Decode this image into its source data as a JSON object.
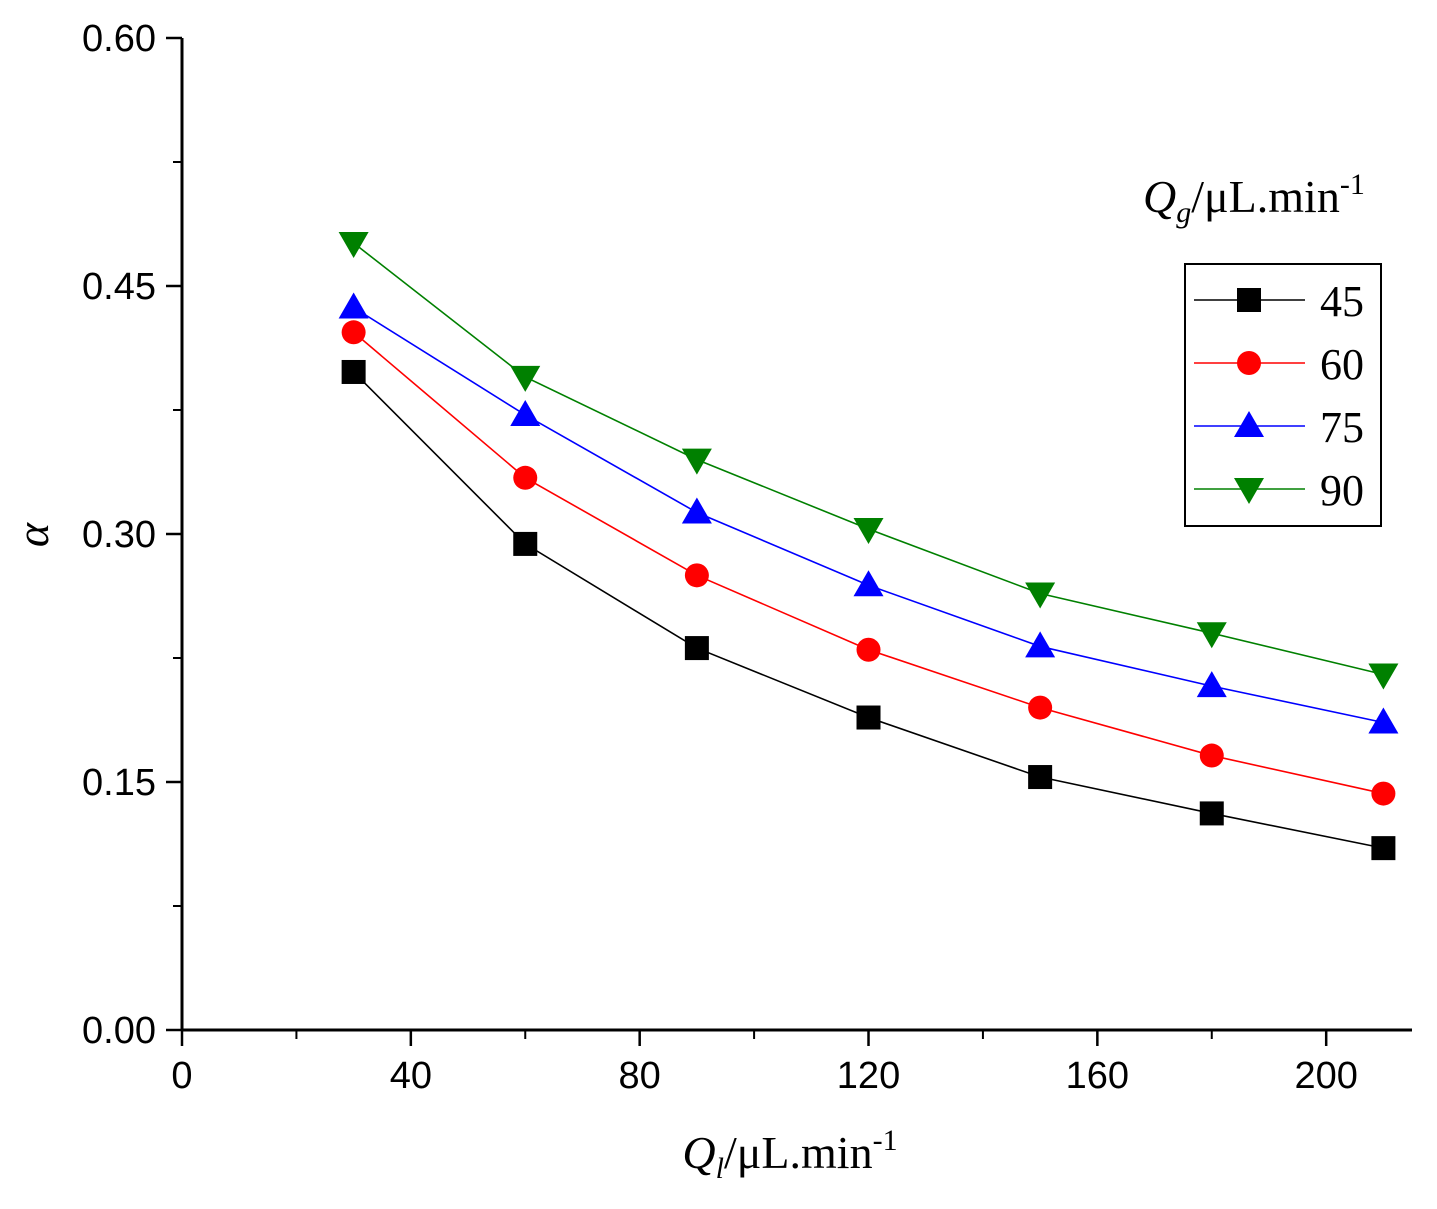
{
  "chart_data": {
    "type": "line",
    "title": "",
    "x": [
      30,
      60,
      90,
      120,
      150,
      180,
      210
    ],
    "series": [
      {
        "name": "45",
        "marker": "square",
        "color": "#000000",
        "values": [
          0.398,
          0.294,
          0.231,
          0.189,
          0.153,
          0.131,
          0.11
        ]
      },
      {
        "name": "60",
        "marker": "circle",
        "color": "#ff0000",
        "values": [
          0.422,
          0.334,
          0.275,
          0.23,
          0.195,
          0.166,
          0.143
        ]
      },
      {
        "name": "75",
        "marker": "triangle-up",
        "color": "#0000ff",
        "values": [
          0.437,
          0.372,
          0.313,
          0.269,
          0.232,
          0.208,
          0.186
        ]
      },
      {
        "name": "90",
        "marker": "triangle-down",
        "color": "#008000",
        "values": [
          0.476,
          0.395,
          0.345,
          0.303,
          0.264,
          0.24,
          0.215
        ]
      }
    ],
    "xlabel": {
      "main": "Q",
      "sub": "l",
      "unit": "/μL.min",
      "sup": "-1"
    },
    "ylabel": "α",
    "xlim": [
      0,
      215
    ],
    "ylim": [
      0,
      0.6
    ],
    "xticks": [
      "0",
      "40",
      "80",
      "120",
      "160",
      "200"
    ],
    "xtick_values": [
      0,
      40,
      80,
      120,
      160,
      200
    ],
    "yticks": [
      "0.00",
      "0.15",
      "0.30",
      "0.45",
      "0.60"
    ],
    "ytick_values": [
      0,
      0.15,
      0.3,
      0.45,
      0.6
    ],
    "grid": false,
    "legend": {
      "title": {
        "main": "Q",
        "sub": "g",
        "unit": "/μL.min",
        "sup": "-1"
      },
      "position": "right"
    }
  }
}
